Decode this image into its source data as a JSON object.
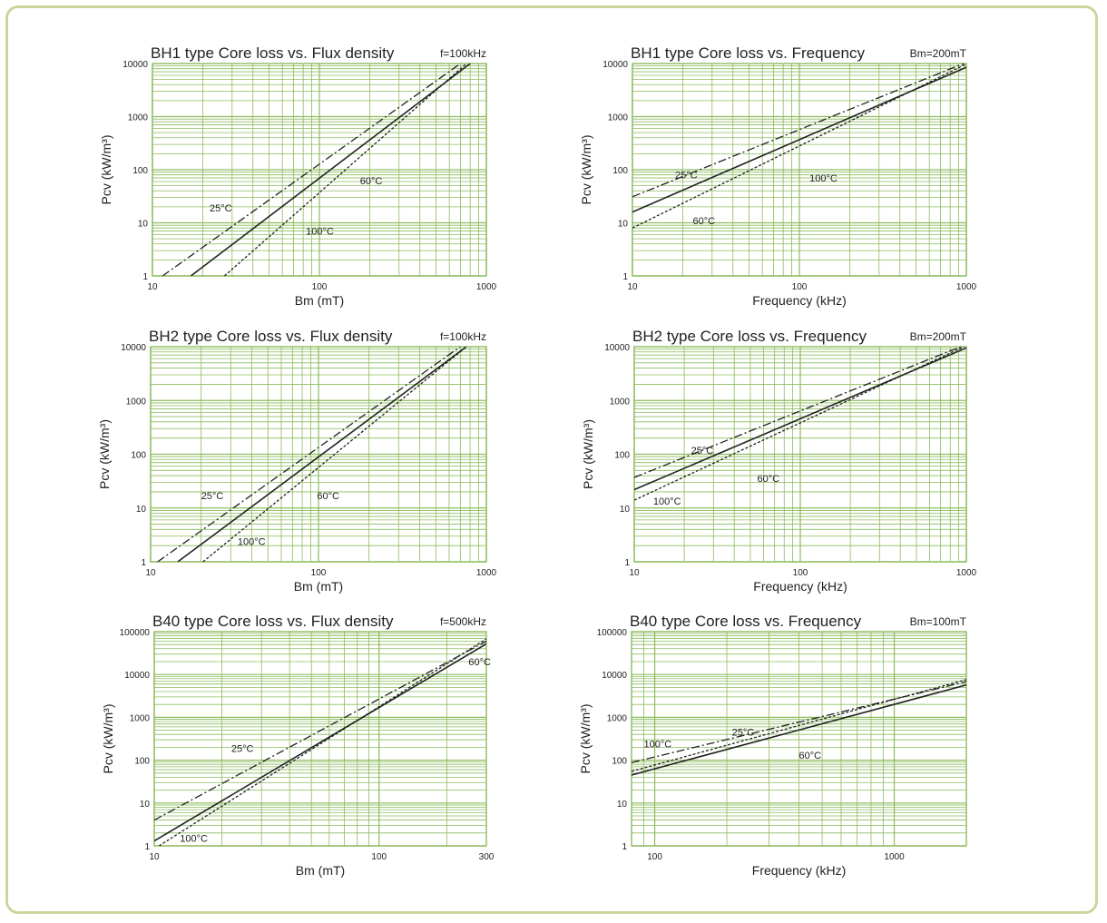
{
  "colors": {
    "grid": "#8cbb5e",
    "frame": "#c9d79c",
    "curve": "#222222"
  },
  "chart_data": [
    {
      "type": "line",
      "title": "BH1 type Core loss vs. Flux density",
      "condition": "f=100kHz",
      "xlabel": "Bm (mT)",
      "ylabel": "Pcv (kW/m³)",
      "x_scale": "log",
      "y_scale": "log",
      "xlim": [
        10,
        1000
      ],
      "ylim": [
        1,
        10000
      ],
      "x_ticks": [
        "10",
        "100",
        "1000"
      ],
      "y_ticks": [
        "1",
        "10",
        "100",
        "1000",
        "10000"
      ],
      "grid": true,
      "series": [
        {
          "name": "25°C",
          "style": "dashdot",
          "x": [
            11.5,
            700
          ],
          "y": [
            1,
            10000
          ]
        },
        {
          "name": "60°C",
          "style": "solid",
          "x": [
            17,
            800
          ],
          "y": [
            1,
            10000
          ]
        },
        {
          "name": "100°C",
          "style": "dotted",
          "x": [
            27,
            760
          ],
          "y": [
            1,
            10000
          ]
        }
      ],
      "annotations": [
        {
          "text": "25°C",
          "x": 22,
          "y": 19
        },
        {
          "text": "60°C",
          "x": 175,
          "y": 62
        },
        {
          "text": "100°C",
          "x": 83,
          "y": 7
        }
      ]
    },
    {
      "type": "line",
      "title": "BH1 type Core loss vs. Frequency",
      "condition": "Bm=200mT",
      "xlabel": "Frequency (kHz)",
      "ylabel": "Pcv (kW/m³)",
      "x_scale": "log",
      "y_scale": "log",
      "xlim": [
        10,
        1000
      ],
      "ylim": [
        1,
        10000
      ],
      "x_ticks": [
        "10",
        "100",
        "1000"
      ],
      "y_ticks": [
        "1",
        "10",
        "100",
        "1000",
        "10000"
      ],
      "grid": true,
      "series": [
        {
          "name": "25°C",
          "style": "dashdot",
          "x": [
            10,
            1000
          ],
          "y": [
            31,
            10500
          ]
        },
        {
          "name": "60°C",
          "style": "solid",
          "x": [
            10,
            1000
          ],
          "y": [
            16,
            8500
          ]
        },
        {
          "name": "100°C",
          "style": "dotted",
          "x": [
            10,
            1000
          ],
          "y": [
            8,
            9800
          ]
        }
      ],
      "annotations": [
        {
          "text": "25°C",
          "x": 18,
          "y": 80
        },
        {
          "text": "60°C",
          "x": 23,
          "y": 11
        },
        {
          "text": "100°C",
          "x": 115,
          "y": 70
        }
      ]
    },
    {
      "type": "line",
      "title": "BH2 type Core loss vs. Flux density",
      "condition": "f=100kHz",
      "xlabel": "Bm (mT)",
      "ylabel": "Pcv (kW/m³)",
      "x_scale": "log",
      "y_scale": "log",
      "xlim": [
        10,
        1000
      ],
      "ylim": [
        1,
        10000
      ],
      "x_ticks": [
        "10",
        "100",
        "1000"
      ],
      "y_ticks": [
        "1",
        "10",
        "100",
        "1000",
        "10000"
      ],
      "grid": true,
      "series": [
        {
          "name": "25°C",
          "style": "dashdot",
          "x": [
            11,
            700
          ],
          "y": [
            1,
            10000
          ]
        },
        {
          "name": "60°C",
          "style": "solid",
          "x": [
            14.5,
            760
          ],
          "y": [
            1,
            10000
          ]
        },
        {
          "name": "100°C",
          "style": "dotted",
          "x": [
            20.5,
            760
          ],
          "y": [
            1,
            10000
          ]
        }
      ],
      "annotations": [
        {
          "text": "25°C",
          "x": 20,
          "y": 17
        },
        {
          "text": "60°C",
          "x": 98,
          "y": 17
        },
        {
          "text": "100°C",
          "x": 33,
          "y": 2.4
        }
      ]
    },
    {
      "type": "line",
      "title": "BH2 type Core loss vs. Frequency",
      "condition": "Bm=200mT",
      "xlabel": "Frequency (kHz)",
      "ylabel": "Pcv (kW/m³)",
      "x_scale": "log",
      "y_scale": "log",
      "xlim": [
        10,
        1000
      ],
      "ylim": [
        1,
        10000
      ],
      "x_ticks": [
        "10",
        "100",
        "1000"
      ],
      "y_ticks": [
        "1",
        "10",
        "100",
        "1000",
        "10000"
      ],
      "grid": true,
      "series": [
        {
          "name": "25°C",
          "style": "dashdot",
          "x": [
            10,
            1000
          ],
          "y": [
            37,
            11000
          ]
        },
        {
          "name": "60°C",
          "style": "solid",
          "x": [
            10,
            1000
          ],
          "y": [
            22,
            9500
          ]
        },
        {
          "name": "100°C",
          "style": "dotted",
          "x": [
            10,
            1000
          ],
          "y": [
            14,
            10500
          ]
        }
      ],
      "annotations": [
        {
          "text": "25°C",
          "x": 22,
          "y": 120
        },
        {
          "text": "60°C",
          "x": 55,
          "y": 36
        },
        {
          "text": "100°C",
          "x": 13,
          "y": 13.5
        }
      ]
    },
    {
      "type": "line",
      "title": "B40 type Core loss vs. Flux density",
      "condition": "f=500kHz",
      "xlabel": "Bm (mT)",
      "ylabel": "Pcv (kW/m³)",
      "x_scale": "log",
      "y_scale": "log",
      "xlim": [
        10,
        300
      ],
      "ylim": [
        1,
        100000
      ],
      "x_ticks": [
        "10",
        "100",
        "300"
      ],
      "y_ticks": [
        "1",
        "10",
        "100",
        "1000",
        "10000",
        "100000"
      ],
      "grid": true,
      "series": [
        {
          "name": "25°C",
          "style": "dashdot",
          "x": [
            10,
            300
          ],
          "y": [
            4,
            60000
          ]
        },
        {
          "name": "60°C",
          "style": "solid",
          "x": [
            10,
            300
          ],
          "y": [
            1.3,
            52000
          ]
        },
        {
          "name": "100°C",
          "style": "dotted",
          "x": [
            10.5,
            300
          ],
          "y": [
            1,
            68000
          ]
        }
      ],
      "annotations": [
        {
          "text": "25°C",
          "x": 22,
          "y": 190
        },
        {
          "text": "60°C",
          "x": 250,
          "y": 20000
        },
        {
          "text": "100°C",
          "x": 13,
          "y": 1.5
        }
      ]
    },
    {
      "type": "line",
      "title": "B40 type Core loss vs. Frequency",
      "condition": "Bm=100mT",
      "xlabel": "Frequency (kHz)",
      "ylabel": "Pcv (kW/m³)",
      "x_scale": "log",
      "y_scale": "log",
      "xlim": [
        80,
        2000
      ],
      "ylim": [
        1,
        100000
      ],
      "x_ticks": [
        "100",
        "1000"
      ],
      "y_ticks": [
        "1",
        "10",
        "100",
        "1000",
        "10000",
        "100000"
      ],
      "grid": true,
      "series": [
        {
          "name": "25°C",
          "style": "dashdot",
          "x": [
            80,
            2000
          ],
          "y": [
            88,
            6800
          ]
        },
        {
          "name": "60°C",
          "style": "solid",
          "x": [
            80,
            2000
          ],
          "y": [
            45,
            5700
          ]
        },
        {
          "name": "100°C",
          "style": "dotted",
          "x": [
            80,
            2000
          ],
          "y": [
            55,
            7600
          ]
        }
      ],
      "annotations": [
        {
          "text": "25°C",
          "x": 210,
          "y": 460
        },
        {
          "text": "60°C",
          "x": 400,
          "y": 130
        },
        {
          "text": "100°C",
          "x": 90,
          "y": 240
        }
      ]
    }
  ]
}
